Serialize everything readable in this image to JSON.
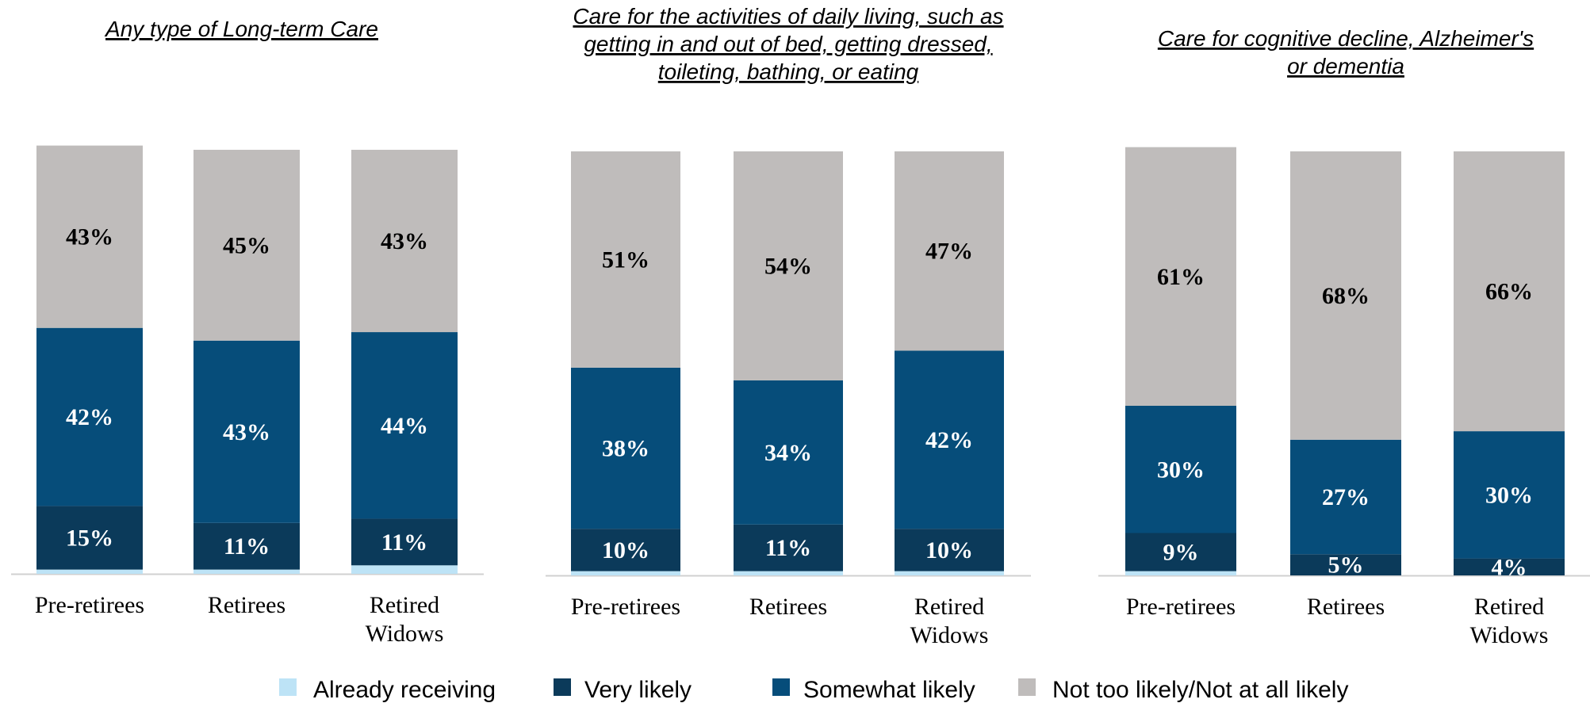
{
  "colors": {
    "already_receiving": "#bde3f6",
    "very_likely": "#0b3a5a",
    "somewhat_likely": "#064d7a",
    "not_likely": "#bfbcbb",
    "axis": "#d0d0d0"
  },
  "legend": [
    {
      "key": "already_receiving",
      "label": "Already receiving"
    },
    {
      "key": "very_likely",
      "label": "Very likely"
    },
    {
      "key": "somewhat_likely",
      "label": "Somewhat likely"
    },
    {
      "key": "not_likely",
      "label": "Not too likely/Not at all likely"
    }
  ],
  "chart_data": [
    {
      "type": "bar",
      "stacked": true,
      "title_lines": [
        "Any type of Long-term Care"
      ],
      "categories": [
        [
          "Pre-retirees"
        ],
        [
          "Retirees"
        ],
        [
          "Retired",
          "Widows"
        ]
      ],
      "series": [
        {
          "key": "already_receiving",
          "name": "Already receiving",
          "values": [
            1,
            1,
            2
          ],
          "labels": [
            "",
            "",
            ""
          ]
        },
        {
          "key": "very_likely",
          "name": "Very likely",
          "values": [
            15,
            11,
            11
          ],
          "labels": [
            "15%",
            "11%",
            "11%"
          ]
        },
        {
          "key": "somewhat_likely",
          "name": "Somewhat likely",
          "values": [
            42,
            43,
            44
          ],
          "labels": [
            "42%",
            "43%",
            "44%"
          ]
        },
        {
          "key": "not_likely",
          "name": "Not too likely/Not at all likely",
          "values": [
            43,
            45,
            43
          ],
          "labels": [
            "43%",
            "45%",
            "43%"
          ]
        }
      ]
    },
    {
      "type": "bar",
      "stacked": true,
      "title_lines": [
        "Care for the activities of daily living, such as",
        "getting in and out of bed, getting dressed,",
        "toileting, bathing, or  eating"
      ],
      "categories": [
        [
          "Pre-retirees"
        ],
        [
          "Retirees"
        ],
        [
          "Retired",
          "Widows"
        ]
      ],
      "series": [
        {
          "key": "already_receiving",
          "name": "Already receiving",
          "values": [
            1,
            1,
            1
          ],
          "labels": [
            "",
            "",
            ""
          ]
        },
        {
          "key": "very_likely",
          "name": "Very likely",
          "values": [
            10,
            11,
            10
          ],
          "labels": [
            "10%",
            "11%",
            "10%"
          ]
        },
        {
          "key": "somewhat_likely",
          "name": "Somewhat likely",
          "values": [
            38,
            34,
            42
          ],
          "labels": [
            "38%",
            "34%",
            "42%"
          ]
        },
        {
          "key": "not_likely",
          "name": "Not too likely/Not at all likely",
          "values": [
            51,
            54,
            47
          ],
          "labels": [
            "51%",
            "54%",
            "47%"
          ]
        }
      ]
    },
    {
      "type": "bar",
      "stacked": true,
      "title_lines": [
        "Care for cognitive decline, Alzheimer's",
        "or dementia"
      ],
      "categories": [
        [
          "Pre-retirees"
        ],
        [
          "Retirees"
        ],
        [
          "Retired",
          "Widows"
        ]
      ],
      "series": [
        {
          "key": "already_receiving",
          "name": "Already receiving",
          "values": [
            1,
            0,
            0
          ],
          "labels": [
            "",
            "",
            ""
          ]
        },
        {
          "key": "very_likely",
          "name": "Very likely",
          "values": [
            9,
            5,
            4
          ],
          "labels": [
            "9%",
            "5%",
            "4%"
          ]
        },
        {
          "key": "somewhat_likely",
          "name": "Somewhat likely",
          "values": [
            30,
            27,
            30
          ],
          "labels": [
            "30%",
            "27%",
            "30%"
          ]
        },
        {
          "key": "not_likely",
          "name": "Not too likely/Not at all likely",
          "values": [
            61,
            68,
            66
          ],
          "labels": [
            "61%",
            "68%",
            "66%"
          ]
        }
      ]
    }
  ]
}
